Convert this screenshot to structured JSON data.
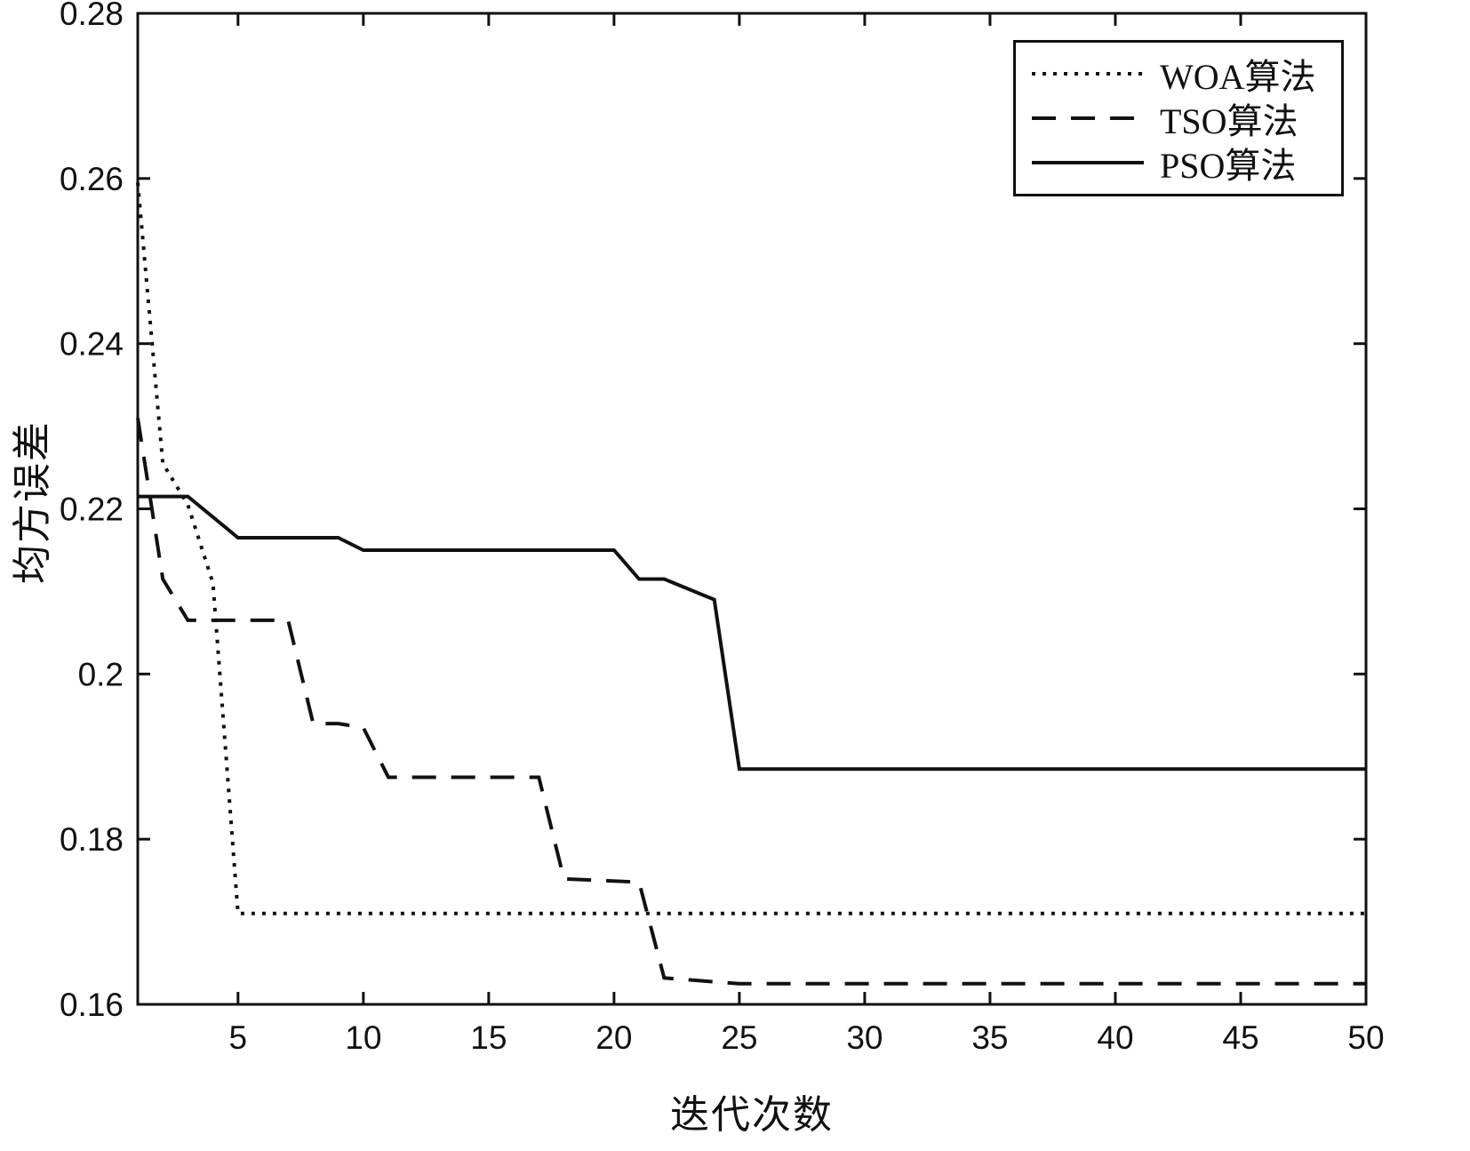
{
  "figure": {
    "background": "#ffffff",
    "line_color": "#111111"
  },
  "chart_data": {
    "type": "line",
    "title": "",
    "xlabel": "迭代次数",
    "ylabel": "均方误差",
    "xlim": [
      1,
      50
    ],
    "ylim": [
      0.16,
      0.28
    ],
    "xticks": [
      5,
      10,
      15,
      20,
      25,
      30,
      35,
      40,
      45,
      50
    ],
    "yticks": [
      0.16,
      0.18,
      0.2,
      0.22,
      0.24,
      0.26,
      0.28
    ],
    "ytick_labels": [
      "0.16",
      "0.18",
      "0.2",
      "0.22",
      "0.24",
      "0.26",
      "0.28"
    ],
    "grid": false,
    "legend_position": "top-right",
    "series": [
      {
        "name": "WOA算法",
        "style": "dotted",
        "points": [
          [
            1,
            0.2595
          ],
          [
            2,
            0.2255
          ],
          [
            3,
            0.2205
          ],
          [
            4,
            0.211
          ],
          [
            5,
            0.171
          ],
          [
            50,
            0.171
          ]
        ]
      },
      {
        "name": "TSO算法",
        "style": "dashed",
        "points": [
          [
            1,
            0.231
          ],
          [
            2,
            0.2115
          ],
          [
            3,
            0.2065
          ],
          [
            7,
            0.2065
          ],
          [
            8,
            0.194
          ],
          [
            9,
            0.194
          ],
          [
            10,
            0.1935
          ],
          [
            11,
            0.1875
          ],
          [
            17,
            0.1875
          ],
          [
            18,
            0.1752
          ],
          [
            21,
            0.1748
          ],
          [
            22,
            0.1632
          ],
          [
            25,
            0.1625
          ],
          [
            50,
            0.1625
          ]
        ]
      },
      {
        "name": "PSO算法",
        "style": "solid",
        "points": [
          [
            1,
            0.2215
          ],
          [
            3,
            0.2215
          ],
          [
            5,
            0.2165
          ],
          [
            9,
            0.2165
          ],
          [
            10,
            0.215
          ],
          [
            20,
            0.215
          ],
          [
            21,
            0.2115
          ],
          [
            22,
            0.2115
          ],
          [
            24,
            0.209
          ],
          [
            25,
            0.1885
          ],
          [
            50,
            0.1885
          ]
        ]
      }
    ]
  }
}
